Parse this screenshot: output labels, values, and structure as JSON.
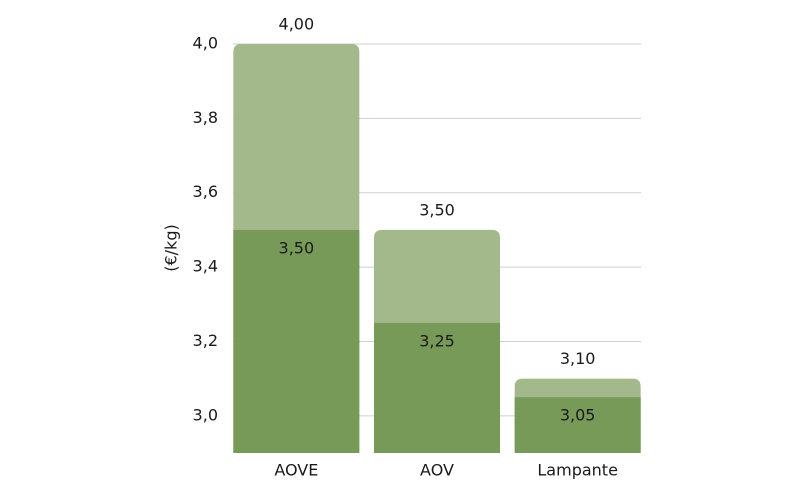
{
  "chart_data": {
    "type": "bar",
    "overlap": true,
    "y_label": "(€/kg)",
    "categories": [
      "AOVE",
      "AOV",
      "Lampante"
    ],
    "series": [
      {
        "color": "#a3b98c",
        "values": [
          4.0,
          3.5,
          3.1
        ],
        "value_labels": [
          "4,00",
          "3,50",
          "3,10"
        ]
      },
      {
        "color": "#789a58",
        "values": [
          3.5,
          3.25,
          3.05
        ],
        "value_labels": [
          "3,50",
          "3,25",
          "3,05"
        ]
      }
    ],
    "ylim": [
      2.9,
      4.0
    ],
    "yticks": [
      {
        "value": 3.0,
        "label": "3,0"
      },
      {
        "value": 3.2,
        "label": "3,2"
      },
      {
        "value": 3.4,
        "label": "3,4"
      },
      {
        "value": 3.6,
        "label": "3,6"
      },
      {
        "value": 3.8,
        "label": "3,8"
      },
      {
        "value": 4.0,
        "label": "4,0"
      }
    ],
    "grid": true
  }
}
